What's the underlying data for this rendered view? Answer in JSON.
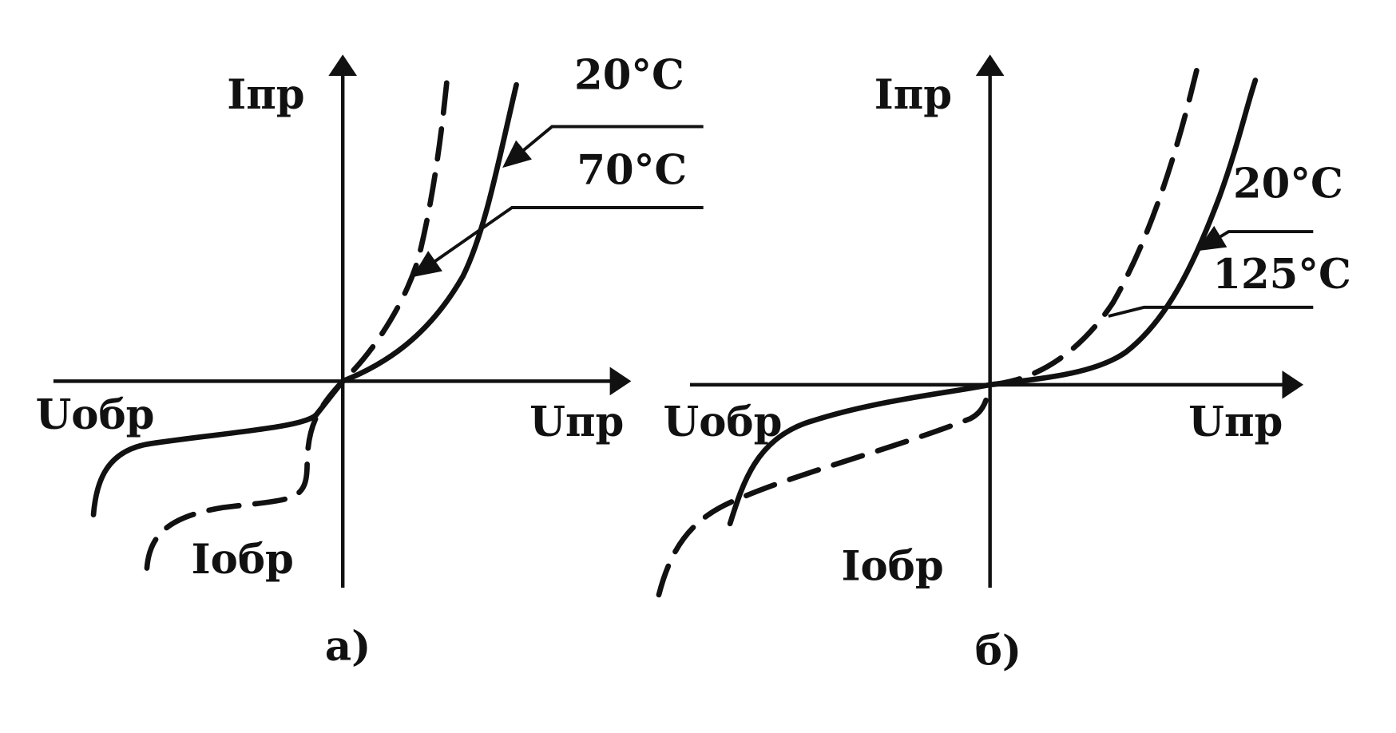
{
  "panels": [
    {
      "y_axis_label": "Iпр",
      "x_axis_label": "Uпр",
      "neg_x_label": "Uобр",
      "neg_y_label": "Iобр",
      "curve_labels": [
        "20°C",
        "70°C"
      ],
      "caption": "а)"
    },
    {
      "y_axis_label": "Iпр",
      "x_axis_label": "Uпр",
      "neg_x_label": "Uобр",
      "neg_y_label": "Iобр",
      "curve_labels": [
        "20°C",
        "125°C"
      ],
      "caption": "б)"
    }
  ]
}
